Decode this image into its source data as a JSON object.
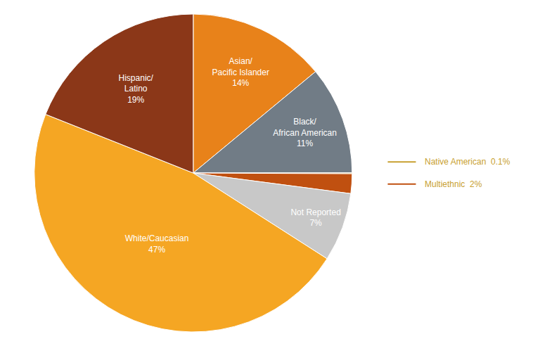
{
  "chart_data": {
    "type": "pie",
    "categories": [
      "Asian/\nPacific Islander\n14%",
      "Black/\nAfrican American\n11%",
      null,
      null,
      "Not Reported\n7%",
      "White/Caucasian\n47%",
      "Hispanic/\nLatino\n19%"
    ],
    "values": [
      14,
      11,
      0.1,
      2,
      7,
      47,
      19
    ],
    "colors": [
      "#E8821A",
      "#717C86",
      "#C8A030",
      "#C05010",
      "#C8C8C8",
      "#F5A623",
      "#8B3718"
    ],
    "annotations": [
      {
        "text": "Native American  0.1%",
        "color": "#C8A030",
        "text_color": "#C8A030"
      },
      {
        "text": "Multiethnic  2%",
        "color": "#C05010",
        "text_color": "#C8A030"
      }
    ]
  }
}
